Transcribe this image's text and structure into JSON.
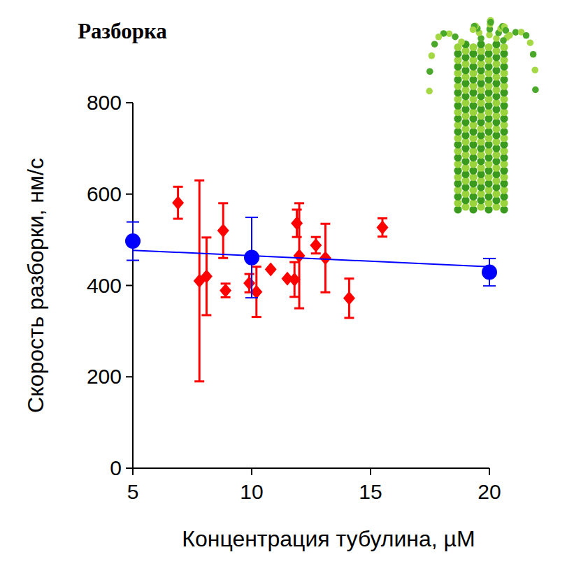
{
  "chart_data": {
    "type": "scatter",
    "title": "Разборка",
    "x_label": "Концентрация тубулина, µM",
    "y_label": "Скорость разборки, нм/с",
    "xlim": [
      5,
      20
    ],
    "ylim": [
      0,
      800
    ],
    "xticks": [
      5,
      10,
      15,
      20
    ],
    "yticks": [
      0,
      200,
      400,
      600,
      800
    ],
    "grid": false,
    "series": [
      {
        "type": "scatter",
        "color": "#ff0000",
        "marker": "diamond",
        "x": [
          6.9,
          7.8,
          8.1,
          8.8,
          8.9,
          9.9,
          10.2,
          10.8,
          11.5,
          11.8,
          11.9,
          12.0,
          12.7,
          13.1,
          14.1,
          15.5
        ],
        "values": [
          581,
          410,
          420,
          520,
          389,
          405,
          386,
          435,
          415,
          413,
          536,
          465,
          488,
          460,
          372,
          527
        ],
        "errors": [
          35,
          220,
          85,
          60,
          15,
          20,
          55,
          0,
          0,
          38,
          30,
          115,
          18,
          75,
          43,
          20
        ]
      },
      {
        "type": "scatter",
        "color": "#0000ff",
        "marker": "circle",
        "x": [
          5,
          10,
          20
        ],
        "values": [
          497,
          461,
          429
        ],
        "errors": [
          42,
          88,
          30
        ]
      },
      {
        "type": "line",
        "color": "#0000ff",
        "line_style": "solid",
        "x": [
          5,
          20
        ],
        "values": [
          477,
          441
        ]
      }
    ]
  }
}
